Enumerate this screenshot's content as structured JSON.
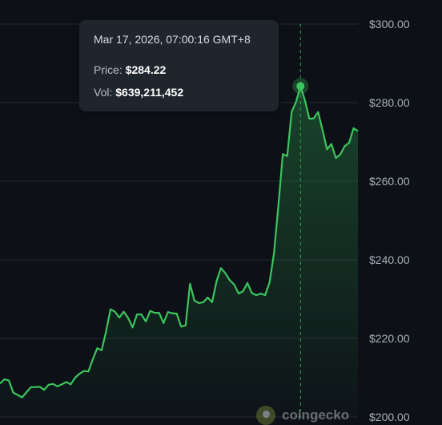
{
  "chart_data": {
    "type": "area",
    "title": "",
    "xlabel": "",
    "ylabel": "",
    "ylim": [
      200,
      300
    ],
    "y_ticks": [
      "$200.00",
      "$220.00",
      "$240.00",
      "$260.00",
      "$280.00",
      "$300.00"
    ],
    "grid": true,
    "line_color": "#3cc45e",
    "series": [
      {
        "values": [
          208.5,
          209.6,
          209.3,
          206.2,
          205.6,
          205.0,
          206.3,
          207.6,
          207.6,
          207.7,
          206.9,
          208.2,
          208.4,
          207.8,
          208.3,
          208.9,
          208.3,
          210.0,
          211.0,
          211.7,
          211.6,
          214.7,
          217.5,
          217.0,
          221.7,
          227.4,
          226.8,
          225.3,
          226.8,
          225.2,
          222.8,
          226.1,
          226.1,
          224.3,
          227.0,
          226.5,
          226.5,
          223.9,
          226.7,
          226.4,
          226.3,
          223.0,
          223.3,
          233.9,
          229.6,
          229.0,
          229.2,
          230.4,
          229.2,
          234.5,
          237.9,
          236.6,
          234.8,
          233.7,
          231.4,
          232.0,
          234.1,
          231.5,
          231.0,
          231.4,
          231.0,
          234.2,
          241.5,
          253.9,
          266.9,
          266.4,
          277.6,
          280.2,
          284.2,
          280.6,
          275.9,
          276.0,
          277.6,
          272.9,
          268.1,
          269.5,
          265.9,
          266.8,
          268.9,
          269.8,
          273.5,
          272.8
        ]
      }
    ],
    "tooltip": {
      "date": "Mar 17, 2026, 07:00:16 GMT+8",
      "price_label": "Price:",
      "price_value": "$284.22",
      "vol_label": "Vol:",
      "vol_value": "$639,211,452"
    },
    "highlight_index": 68
  },
  "brand": {
    "name": "coingecko",
    "logo_icon": "gecko-icon"
  }
}
